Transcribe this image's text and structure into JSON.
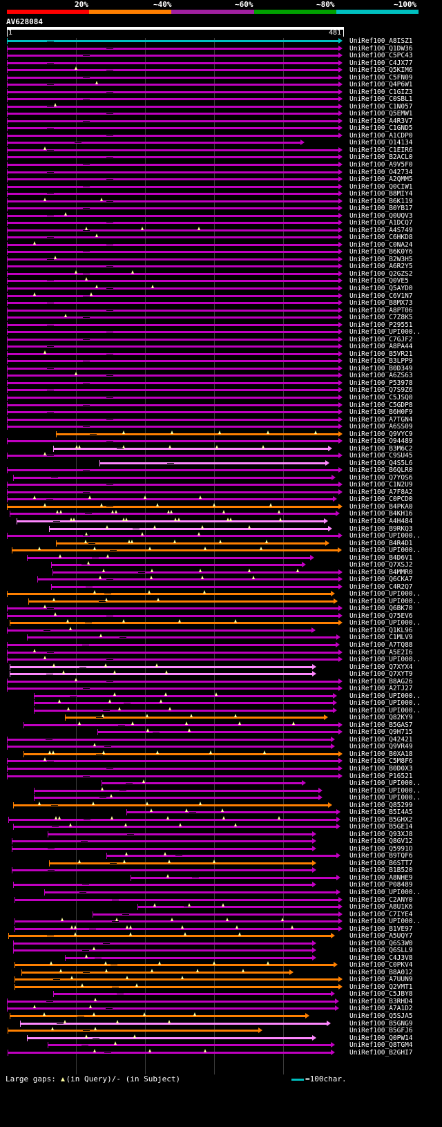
{
  "legend": {
    "labels": [
      "20%",
      "~40%",
      "~60%",
      "~80%",
      "~100%"
    ],
    "colors": [
      "#ff0000",
      "#ff7f00",
      "#a020a0",
      "#00a000",
      "#00c0c0"
    ]
  },
  "query": {
    "name": "AV628084",
    "start": "1",
    "end": "481",
    "length": 481
  },
  "footer": {
    "gaps_text": "Large gaps:",
    "in_query": "(in Query)/",
    "in_subject": "- (in Subject)",
    "scale_text": "=100char.",
    "scale_color": "#00c0c0"
  },
  "palette": {
    "c": "#00c0c0",
    "p": "#c000c0",
    "o": "#ff8000",
    "v": "#ff88ff"
  },
  "hits": [
    [
      "UniRef100_A8ISZ1",
      "c",
      1,
      481,
      0
    ],
    [
      "UniRef100_Q1DW36",
      "p",
      1,
      481,
      0
    ],
    [
      "UniRef100_C5PC43",
      "p",
      1,
      481,
      0
    ],
    [
      "UniRef100_C4JX77",
      "p",
      1,
      481,
      0
    ],
    [
      "UniRef100_Q5KIM6",
      "p",
      1,
      481,
      1
    ],
    [
      "UniRef100_C5FN09",
      "p",
      1,
      481,
      0
    ],
    [
      "UniRef100_Q4P6W1",
      "p",
      1,
      481,
      1
    ],
    [
      "UniRef100_C1GIZ3",
      "p",
      1,
      481,
      0
    ],
    [
      "UniRef100_C0SBL1",
      "p",
      1,
      481,
      0
    ],
    [
      "UniRef100_C1N057",
      "p",
      1,
      481,
      1
    ],
    [
      "UniRef100_Q5EMW1",
      "p",
      1,
      481,
      0
    ],
    [
      "UniRef100_A4R3V7",
      "p",
      1,
      481,
      0
    ],
    [
      "UniRef100_C1GND5",
      "p",
      1,
      481,
      0
    ],
    [
      "UniRef100_A1CDP0",
      "p",
      1,
      481,
      0
    ],
    [
      "UniRef100_O14134",
      "p",
      1,
      426,
      0
    ],
    [
      "UniRef100_C1EIR6",
      "p",
      1,
      481,
      1
    ],
    [
      "UniRef100_B2ACL0",
      "p",
      1,
      481,
      0
    ],
    [
      "UniRef100_A9V5F0",
      "p",
      1,
      481,
      0
    ],
    [
      "UniRef100_O42734",
      "p",
      1,
      481,
      0
    ],
    [
      "UniRef100_A2QMM5",
      "p",
      1,
      481,
      0
    ],
    [
      "UniRef100_Q0CIW1",
      "p",
      1,
      481,
      0
    ],
    [
      "UniRef100_B8MIY4",
      "p",
      1,
      481,
      0
    ],
    [
      "UniRef100_B6K119",
      "p",
      1,
      481,
      2
    ],
    [
      "UniRef100_B0YB17",
      "p",
      1,
      481,
      0
    ],
    [
      "UniRef100_Q0UQV3",
      "p",
      1,
      481,
      1
    ],
    [
      "UniRef100_A1DCQ7",
      "p",
      1,
      481,
      0
    ],
    [
      "UniRef100_A4S749",
      "p",
      1,
      481,
      3
    ],
    [
      "UniRef100_C6HKD8",
      "p",
      1,
      481,
      1
    ],
    [
      "UniRef100_C0NA24",
      "p",
      1,
      481,
      1
    ],
    [
      "UniRef100_B6K0Y6",
      "p",
      1,
      481,
      0
    ],
    [
      "UniRef100_B2W3H5",
      "p",
      1,
      481,
      1
    ],
    [
      "UniRef100_A6R2Y5",
      "p",
      1,
      481,
      0
    ],
    [
      "UniRef100_Q2GZS2",
      "p",
      1,
      481,
      2
    ],
    [
      "UniRef100_Q0VE5",
      "p",
      1,
      481,
      1
    ],
    [
      "UniRef100_Q5AYD0",
      "p",
      1,
      481,
      2
    ],
    [
      "UniRef100_C6V1N7",
      "p",
      1,
      481,
      2
    ],
    [
      "UniRef100_B8MX73",
      "p",
      1,
      481,
      0
    ],
    [
      "UniRef100_A8PT06",
      "p",
      1,
      481,
      0
    ],
    [
      "UniRef100_C7Z8K5",
      "p",
      1,
      481,
      1
    ],
    [
      "UniRef100_P29551",
      "p",
      1,
      481,
      0
    ],
    [
      "UniRef100_UPI000..",
      "p",
      1,
      481,
      0
    ],
    [
      "UniRef100_C7GJF2",
      "p",
      1,
      481,
      0
    ],
    [
      "UniRef100_A8PA44",
      "p",
      1,
      481,
      0
    ],
    [
      "UniRef100_B5VR21",
      "p",
      1,
      481,
      1
    ],
    [
      "UniRef100_B3LPP9",
      "p",
      1,
      481,
      0
    ],
    [
      "UniRef100_B0D349",
      "p",
      1,
      481,
      0
    ],
    [
      "UniRef100_A6ZS63",
      "p",
      1,
      481,
      1
    ],
    [
      "UniRef100_P53978",
      "p",
      1,
      481,
      0
    ],
    [
      "UniRef100_Q7S9Z6",
      "p",
      1,
      481,
      0
    ],
    [
      "UniRef100_C5JSQ0",
      "p",
      1,
      481,
      0
    ],
    [
      "UniRef100_C5GDP8",
      "p",
      1,
      481,
      0
    ],
    [
      "UniRef100_B6H0F9",
      "p",
      1,
      481,
      0
    ],
    [
      "UniRef100_A7TGN4",
      "p",
      1,
      481,
      0
    ],
    [
      "UniRef100_A6SS09",
      "p",
      1,
      481,
      0
    ],
    [
      "UniRef100_Q9VYC9",
      "o",
      72,
      481,
      5
    ],
    [
      "UniRef100_O94489",
      "p",
      1,
      481,
      0
    ],
    [
      "UniRef100_B3M6C2",
      "v",
      68,
      466,
      6
    ],
    [
      "UniRef100_C9SU45",
      "p",
      1,
      481,
      1
    ],
    [
      "UniRef100_Q4S5L6",
      "v",
      135,
      462,
      0
    ],
    [
      "UniRef100_B6QLR0",
      "p",
      1,
      481,
      0
    ],
    [
      "UniRef100_Q7YOS6",
      "p",
      10,
      471,
      0
    ],
    [
      "UniRef100_C1N2U9",
      "p",
      1,
      481,
      0
    ],
    [
      "UniRef100_A7F8A2",
      "p",
      1,
      481,
      0
    ],
    [
      "UniRef100_C0PCD0",
      "p",
      1,
      473,
      4
    ],
    [
      "UniRef100_B4PKA0",
      "o",
      1,
      481,
      5
    ],
    [
      "UniRef100_B4KH16",
      "p",
      5,
      477,
      8
    ],
    [
      "UniRef100_A4H484",
      "v",
      15,
      460,
      9
    ],
    [
      "UniRef100_B9RKQ3",
      "v",
      62,
      466,
      4
    ],
    [
      "UniRef100_UPI000..",
      "p",
      1,
      481,
      3
    ],
    [
      "UniRef100_B4R4D1",
      "o",
      72,
      462,
      6
    ],
    [
      "UniRef100_UPI000..",
      "o",
      8,
      480,
      5
    ],
    [
      "UniRef100_B4D6V1",
      "p",
      30,
      440,
      2
    ],
    [
      "UniRef100_Q7XSJ2",
      "p",
      65,
      428,
      1
    ],
    [
      "UniRef100_B4MMR0",
      "p",
      67,
      481,
      5
    ],
    [
      "UniRef100_Q6CKA7",
      "p",
      45,
      481,
      4
    ],
    [
      "UniRef100_C4R2Q7",
      "p",
      65,
      481,
      0
    ],
    [
      "UniRef100_UPI000..",
      "o",
      1,
      470,
      3
    ],
    [
      "UniRef100_UPI000..",
      "o",
      32,
      474,
      3
    ],
    [
      "UniRef100_Q6BK70",
      "p",
      1,
      481,
      1
    ],
    [
      "UniRef100_Q75EV6",
      "p",
      1,
      481,
      1
    ],
    [
      "UniRef100_UPI000..",
      "o",
      5,
      481,
      4
    ],
    [
      "UniRef100_Q1KL96",
      "p",
      1,
      442,
      1
    ],
    [
      "UniRef100_C1MLV9",
      "p",
      30,
      478,
      1
    ],
    [
      "UniRef100_A7TQ88",
      "p",
      1,
      477,
      0
    ],
    [
      "UniRef100_A5E2I6",
      "p",
      1,
      481,
      1
    ],
    [
      "UniRef100_UPI000..",
      "p",
      1,
      481,
      1
    ],
    [
      "UniRef100_Q7XYX4",
      "v",
      5,
      443,
      3
    ],
    [
      "UniRef100_Q7XYT9",
      "v",
      5,
      443,
      3
    ],
    [
      "UniRef100_B8AG26",
      "p",
      1,
      481,
      1
    ],
    [
      "UniRef100_A2TJ27",
      "p",
      1,
      481,
      0
    ],
    [
      "UniRef100_UPI000..",
      "p",
      40,
      473,
      3
    ],
    [
      "UniRef100_UPI000..",
      "p",
      40,
      473,
      3
    ],
    [
      "UniRef100_UPI000..",
      "p",
      40,
      473,
      3
    ],
    [
      "UniRef100_Q82KY9",
      "o",
      85,
      460,
      4
    ],
    [
      "UniRef100_B5GAS7",
      "p",
      25,
      481,
      5
    ],
    [
      "UniRef100_Q9H715",
      "p",
      132,
      481,
      2
    ],
    [
      "UniRef100_Q42421",
      "p",
      1,
      470,
      0
    ],
    [
      "UniRef100_Q9VR49",
      "p",
      1,
      470,
      1
    ],
    [
      "UniRef100_B0XA18",
      "o",
      25,
      481,
      6
    ],
    [
      "UniRef100_C5M8F6",
      "p",
      1,
      481,
      1
    ],
    [
      "UniRef100_B0D0X3",
      "p",
      1,
      481,
      0
    ],
    [
      "UniRef100_P16521",
      "p",
      1,
      481,
      0
    ],
    [
      "UniRef100_UPI000..",
      "p",
      138,
      428,
      1
    ],
    [
      "UniRef100_UPI000..",
      "p",
      40,
      452,
      1
    ],
    [
      "UniRef100_UPI000..",
      "p",
      40,
      452,
      1
    ],
    [
      "UniRef100_Q85299",
      "o",
      10,
      466,
      4
    ],
    [
      "UniRef100_B5I4A5",
      "p",
      174,
      478,
      3
    ],
    [
      "UniRef100_B5GHX2",
      "p",
      3,
      478,
      6
    ],
    [
      "UniRef100_B5GE14",
      "p",
      10,
      478,
      4
    ],
    [
      "UniRef100_Q93XJ8",
      "p",
      60,
      443,
      0
    ],
    [
      "UniRef100_Q8GV12",
      "p",
      8,
      443,
      0
    ],
    [
      "UniRef100_Q5991O",
      "p",
      8,
      443,
      0
    ],
    [
      "UniRef100_B9TQF6",
      "p",
      145,
      478,
      2
    ],
    [
      "UniRef100_B6STT7",
      "o",
      62,
      443,
      4
    ],
    [
      "UniRef100_B1B520",
      "p",
      8,
      443,
      0
    ],
    [
      "UniRef100_A8NHE9",
      "p",
      180,
      478,
      1
    ],
    [
      "UniRef100_P08489",
      "p",
      10,
      443,
      0
    ],
    [
      "UniRef100_UPI000..",
      "p",
      55,
      478,
      0
    ],
    [
      "UniRef100_C2ANY0",
      "p",
      12,
      481,
      0
    ],
    [
      "UniRef100_A8U1K6",
      "p",
      190,
      481,
      3
    ],
    [
      "UniRef100_C7IYE4",
      "p",
      125,
      481,
      0
    ],
    [
      "UniRef100_UPI000..",
      "p",
      12,
      481,
      5
    ],
    [
      "UniRef100_B1VE97",
      "p",
      12,
      481,
      7
    ],
    [
      "UniRef100_A5UQY7",
      "o",
      3,
      470,
      4
    ],
    [
      "UniRef100_Q6S3W0",
      "p",
      10,
      443,
      0
    ],
    [
      "UniRef100_Q6SLL9",
      "p",
      10,
      443,
      1
    ],
    [
      "UniRef100_C4J3V8",
      "p",
      85,
      443,
      1
    ],
    [
      "UniRef100_C0PKV4",
      "o",
      12,
      474,
      5
    ],
    [
      "UniRef100_B8A012",
      "o",
      22,
      410,
      5
    ],
    [
      "UniRef100_A7UUN9",
      "o",
      12,
      481,
      3
    ],
    [
      "UniRef100_Q2VMT1",
      "o",
      12,
      481,
      2
    ],
    [
      "UniRef100_C5JBY8",
      "p",
      68,
      470,
      0
    ],
    [
      "UniRef100_B3RHD4",
      "p",
      1,
      476,
      1
    ],
    [
      "UniRef100_A7A1D2",
      "p",
      1,
      476,
      2
    ],
    [
      "UniRef100_Q5SJA5",
      "o",
      5,
      433,
      4
    ],
    [
      "UniRef100_B5GNG9",
      "v",
      20,
      464,
      3
    ],
    [
      "UniRef100_B5GFJ6",
      "o",
      2,
      365,
      2
    ],
    [
      "UniRef100_Q0PW14",
      "v",
      30,
      443,
      2
    ],
    [
      "UniRef100_Q8TGM4",
      "p",
      60,
      470,
      1
    ],
    [
      "UniRef100_B2GHI7",
      "p",
      2,
      470,
      3
    ]
  ]
}
